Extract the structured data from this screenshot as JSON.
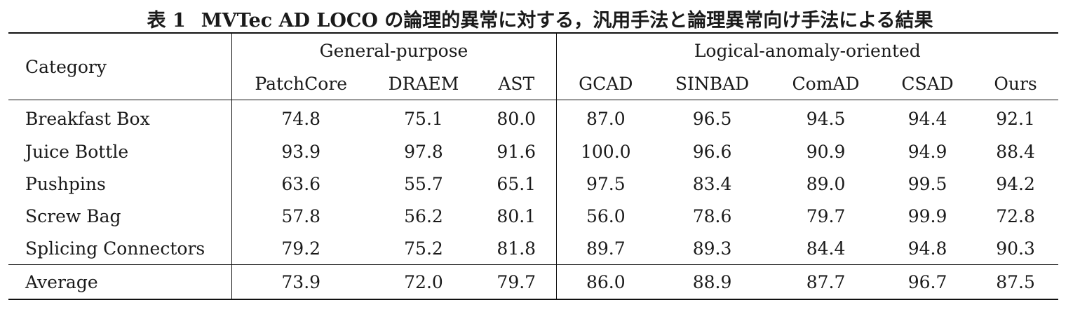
{
  "caption": {
    "label": "表 1",
    "text": "MVTec AD LOCO の論理的異常に対する，汎用手法と論理異常向け手法による結果"
  },
  "table": {
    "category_header": "Category",
    "groups": [
      "General-purpose",
      "Logical-anomaly-oriented"
    ],
    "methods": [
      "PatchCore",
      "DRAEM",
      "AST",
      "GCAD",
      "SINBAD",
      "ComAD",
      "CSAD",
      "Ours"
    ],
    "rows": [
      {
        "category": "Breakfast Box",
        "values": [
          "74.8",
          "75.1",
          "80.0",
          "87.0",
          "96.5",
          "94.5",
          "94.4",
          "92.1"
        ],
        "best": 4
      },
      {
        "category": "Juice Bottle",
        "values": [
          "93.9",
          "97.8",
          "91.6",
          "100.0",
          "96.6",
          "90.9",
          "94.9",
          "88.4"
        ],
        "best": 3
      },
      {
        "category": "Pushpins",
        "values": [
          "63.6",
          "55.7",
          "65.1",
          "97.5",
          "83.4",
          "89.0",
          "99.5",
          "94.2"
        ],
        "best": 6
      },
      {
        "category": "Screw Bag",
        "values": [
          "57.8",
          "56.2",
          "80.1",
          "56.0",
          "78.6",
          "79.7",
          "99.9",
          "72.8"
        ],
        "best": 6
      },
      {
        "category": "Splicing Connectors",
        "values": [
          "79.2",
          "75.2",
          "81.8",
          "89.7",
          "89.3",
          "84.4",
          "94.8",
          "90.3"
        ],
        "best": 6
      }
    ],
    "average": {
      "category": "Average",
      "values": [
        "73.9",
        "72.0",
        "79.7",
        "86.0",
        "88.9",
        "87.7",
        "96.7",
        "87.5"
      ],
      "best": 6
    }
  }
}
